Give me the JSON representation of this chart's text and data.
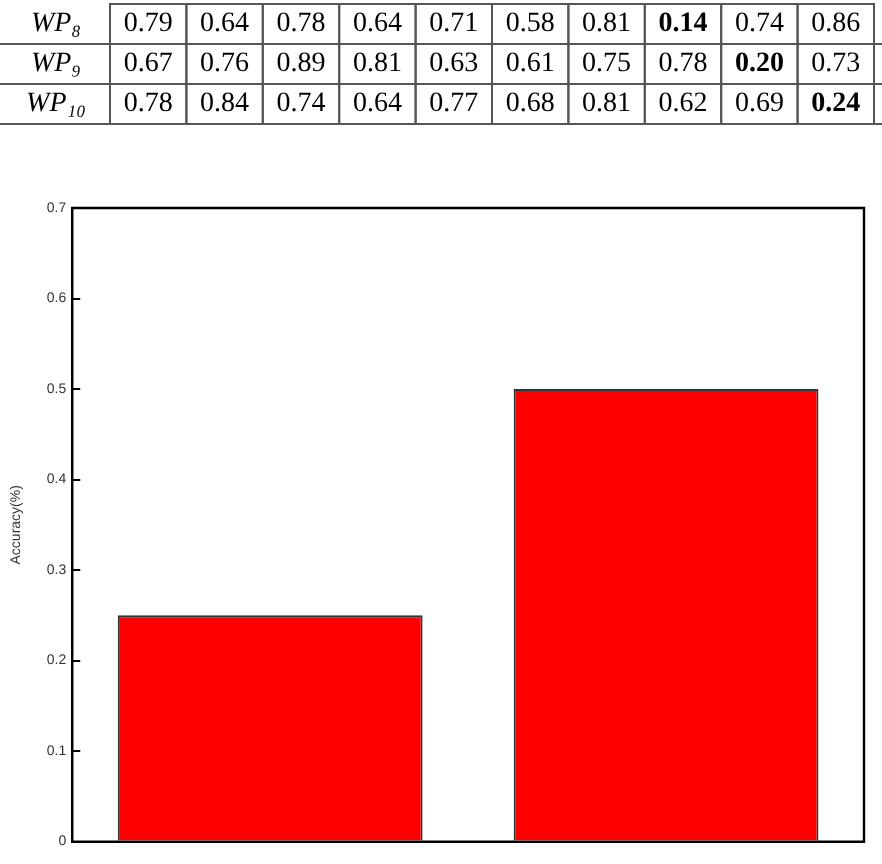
{
  "chart_data": [
    {
      "type": "heatmap",
      "categories": [
        null,
        null,
        null,
        null,
        null,
        null,
        null,
        null,
        null,
        null
      ],
      "y_categories": [
        "WP₈",
        "WP₉",
        "WP₁₀"
      ],
      "cells": [
        [
          0.79,
          0.64,
          0.78,
          0.64,
          0.71,
          0.58,
          0.81,
          0.14,
          0.74,
          0.86
        ],
        [
          0.67,
          0.76,
          0.89,
          0.81,
          0.63,
          0.61,
          0.75,
          0.78,
          0.2,
          0.73
        ],
        [
          0.78,
          0.84,
          0.74,
          0.64,
          0.77,
          0.68,
          0.81,
          0.62,
          0.69,
          0.24
        ]
      ],
      "cell_labels": [
        [
          "0.79",
          "0.64",
          "0.78",
          "0.64",
          "0.71",
          "0.58",
          "0.81",
          "0.14",
          "0.74",
          "0.86"
        ],
        [
          "0.67",
          "0.76",
          "0.89",
          "0.81",
          "0.63",
          "0.61",
          "0.75",
          "0.78",
          "0.20",
          "0.73"
        ],
        [
          "0.78",
          "0.84",
          "0.74",
          "0.64",
          "0.77",
          "0.68",
          "0.81",
          "0.62",
          "0.69",
          "0.24"
        ]
      ]
    },
    {
      "type": "bar",
      "categories": [
        null,
        null
      ],
      "values": [
        0.25,
        0.5
      ],
      "color": "#ff0000",
      "ylabel": "Accuracy(%)",
      "ylim": [
        0,
        0.7
      ],
      "yticks": [
        0,
        0.1,
        0.2,
        0.3,
        0.4,
        0.5,
        0.6,
        0.7
      ],
      "grid": false,
      "legend": false
    }
  ]
}
